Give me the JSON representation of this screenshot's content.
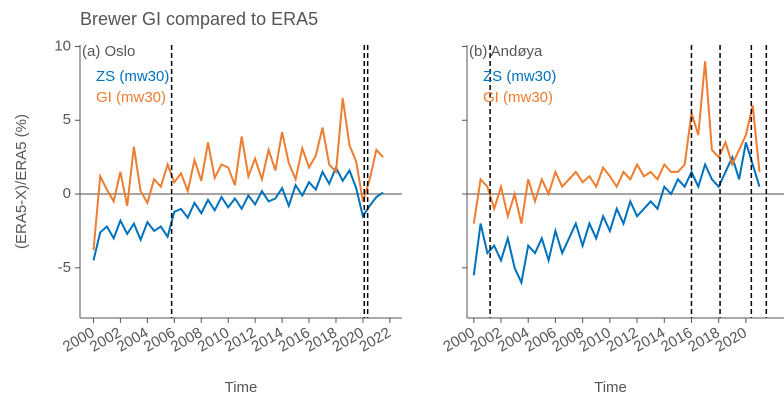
{
  "title": "Brewer GI compared to ERA5",
  "chart_data": [
    {
      "type": "line",
      "panel_label": "(a) Oslo",
      "ylabel": "(ERA5-X)/ERA5 (%)",
      "xlabel": "Time",
      "xlim": [
        1999,
        2022.9
      ],
      "ylim": [
        -8.4,
        10.1
      ],
      "xticks": [
        2000,
        2002,
        2004,
        2006,
        2008,
        2010,
        2012,
        2014,
        2016,
        2018,
        2020,
        2022
      ],
      "yticks": [
        -5,
        0,
        5,
        10
      ],
      "show_ytick_labels": true,
      "zero_line": true,
      "vlines": [
        2005.8,
        2020.1,
        2020.35
      ],
      "x": [
        2000.0,
        2000.5,
        2001.0,
        2001.5,
        2002.0,
        2002.5,
        2003.0,
        2003.5,
        2004.0,
        2004.5,
        2005.0,
        2005.5,
        2006.0,
        2006.5,
        2007.0,
        2007.5,
        2008.0,
        2008.5,
        2009.0,
        2009.5,
        2010.0,
        2010.5,
        2011.0,
        2011.5,
        2012.0,
        2012.5,
        2013.0,
        2013.5,
        2014.0,
        2014.5,
        2015.0,
        2015.5,
        2016.0,
        2016.5,
        2017.0,
        2017.5,
        2018.0,
        2018.5,
        2019.0,
        2019.5,
        2020.0,
        2020.5,
        2021.0,
        2021.5
      ],
      "series": [
        {
          "name": "ZS (mw30)",
          "color": "#0072bd",
          "values": [
            -4.5,
            -2.6,
            -2.2,
            -3.0,
            -1.8,
            -2.7,
            -2.0,
            -3.1,
            -1.9,
            -2.5,
            -2.2,
            -2.9,
            -1.2,
            -1.0,
            -1.6,
            -0.6,
            -1.3,
            -0.4,
            -1.1,
            -0.2,
            -0.9,
            -0.3,
            -1.0,
            -0.1,
            -0.7,
            0.2,
            -0.5,
            -0.3,
            0.4,
            -0.8,
            0.6,
            -0.1,
            0.8,
            0.3,
            1.5,
            0.7,
            1.8,
            0.9,
            1.6,
            0.4,
            -1.5,
            -0.8,
            -0.2,
            0.1
          ]
        },
        {
          "name": "GI (mw30)",
          "color": "#ed7d31",
          "values": [
            -3.8,
            1.2,
            0.3,
            -0.5,
            1.5,
            -0.8,
            3.2,
            0.2,
            -0.6,
            1.0,
            0.5,
            2.0,
            0.8,
            1.4,
            0.2,
            2.3,
            0.9,
            3.5,
            1.1,
            2.0,
            1.8,
            0.6,
            3.9,
            1.2,
            2.4,
            1.0,
            3.0,
            1.6,
            4.2,
            2.1,
            1.0,
            3.1,
            1.8,
            2.6,
            4.5,
            2.0,
            1.5,
            6.5,
            3.3,
            2.2,
            -0.5,
            1.0,
            3.0,
            2.5
          ]
        }
      ]
    },
    {
      "type": "line",
      "panel_label": "(b) Andøya",
      "xlabel": "Time",
      "xlim": [
        1999.5,
        2022.8
      ],
      "ylim": [
        -8.4,
        10.1
      ],
      "xticks": [
        2000,
        2002,
        2004,
        2006,
        2008,
        2010,
        2012,
        2014,
        2016,
        2018,
        2020
      ],
      "yticks": [
        -5,
        0,
        5,
        10
      ],
      "show_ytick_labels": false,
      "zero_line": true,
      "vlines": [
        2001.2,
        2016.0,
        2018.1,
        2020.4,
        2021.5
      ],
      "x": [
        2000.0,
        2000.5,
        2001.0,
        2001.5,
        2002.0,
        2002.5,
        2003.0,
        2003.5,
        2004.0,
        2004.5,
        2005.0,
        2005.5,
        2006.0,
        2006.5,
        2007.0,
        2007.5,
        2008.0,
        2008.5,
        2009.0,
        2009.5,
        2010.0,
        2010.5,
        2011.0,
        2011.5,
        2012.0,
        2012.5,
        2013.0,
        2013.5,
        2014.0,
        2014.5,
        2015.0,
        2015.5,
        2016.0,
        2016.5,
        2017.0,
        2017.5,
        2018.0,
        2018.5,
        2019.0,
        2019.5,
        2020.0,
        2020.5,
        2021.0
      ],
      "series": [
        {
          "name": "ZS (mw30)",
          "color": "#0072bd",
          "values": [
            -5.5,
            -2,
            -4,
            -3.5,
            -4.5,
            -3,
            -5,
            -6,
            -3.5,
            -4,
            -3,
            -4.5,
            -2.5,
            -4,
            -3,
            -2,
            -3.5,
            -2,
            -3,
            -1.5,
            -2.5,
            -1,
            -2,
            -0.5,
            -1.5,
            -1,
            -0.5,
            -1,
            0.5,
            0,
            1,
            0.5,
            1.5,
            0.5,
            2,
            1,
            0.5,
            1.5,
            2.5,
            1,
            3.5,
            2,
            0.5
          ]
        },
        {
          "name": "GI (mw30)",
          "color": "#ed7d31",
          "values": [
            -2,
            1,
            0.5,
            -1,
            0.5,
            -1.5,
            0,
            -2,
            1,
            -0.5,
            1,
            0,
            1.5,
            0.5,
            1,
            1.5,
            0.8,
            1.2,
            0.5,
            1.8,
            1.2,
            0.5,
            1.5,
            1.0,
            2.0,
            1.2,
            1.5,
            1.0,
            2.0,
            1.5,
            1.5,
            2.0,
            5.5,
            4.0,
            9.0,
            3.0,
            2.5,
            3.5,
            2.0,
            3.0,
            4.0,
            6.0,
            1.5
          ]
        }
      ]
    }
  ]
}
